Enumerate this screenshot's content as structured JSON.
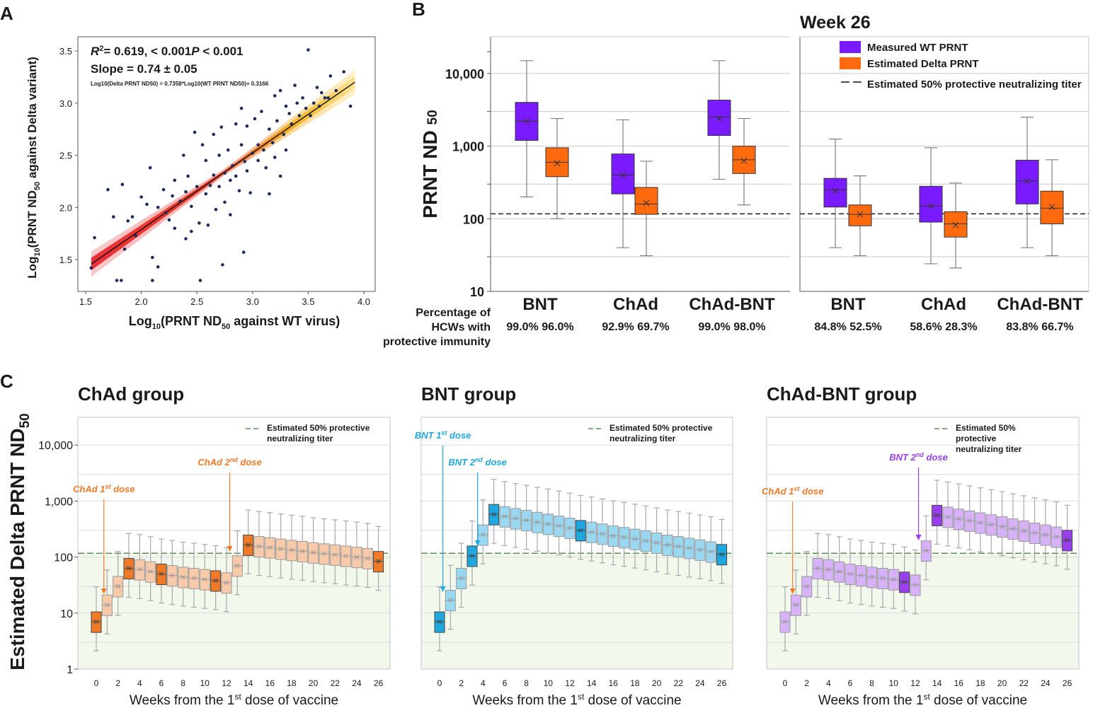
{
  "colors": {
    "wt": "#7a1bff",
    "delta": "#ff6a0e",
    "chad": "#f07a28",
    "bnt": "#1fa8e0",
    "chadbnt": "#9a3ff0",
    "dash_green": "#5a8f5a",
    "scatter": "#1c2a5c",
    "grid": "#c8c8c8"
  },
  "chart_data": [
    {
      "panel": "A",
      "type": "scatter",
      "xlabel": "Log10(PRNT ND50 against WT virus)",
      "ylabel": "Log10(PRNT ND50 against Delta variant)",
      "xlim": [
        1.5,
        4.0
      ],
      "ylim": [
        1.25,
        3.6
      ],
      "xticks": [
        "1.5",
        "2.0",
        "2.5",
        "3.0",
        "3.5",
        "4.0"
      ],
      "yticks": [
        "1.5",
        "2.0",
        "2.5",
        "3.0",
        "3.5"
      ],
      "annotation_r2": "R²= 0.619, P < 0.001",
      "annotation_slope": "Slope = 0.74 ± 0.05",
      "equation": "Log10(Delta PRNT ND50) = 0.7358*Log10(WT PRNT ND50)+ 0.3166",
      "fit": {
        "slope": 0.7358,
        "intercept": 0.3166
      },
      "points": [
        [
          1.55,
          1.42
        ],
        [
          1.58,
          1.71
        ],
        [
          1.7,
          2.17
        ],
        [
          1.75,
          1.91
        ],
        [
          1.78,
          1.3
        ],
        [
          1.82,
          1.3
        ],
        [
          1.83,
          2.22
        ],
        [
          1.85,
          1.6
        ],
        [
          1.88,
          1.87
        ],
        [
          1.92,
          1.91
        ],
        [
          1.95,
          1.73
        ],
        [
          2.0,
          2.1
        ],
        [
          2.05,
          2.03
        ],
        [
          2.08,
          2.38
        ],
        [
          2.1,
          1.52
        ],
        [
          2.1,
          1.3
        ],
        [
          2.15,
          1.43
        ],
        [
          2.15,
          2.0
        ],
        [
          2.2,
          2.17
        ],
        [
          2.22,
          1.95
        ],
        [
          2.25,
          1.88
        ],
        [
          2.28,
          2.11
        ],
        [
          2.3,
          1.8
        ],
        [
          2.3,
          2.26
        ],
        [
          2.35,
          2.06
        ],
        [
          2.38,
          2.5
        ],
        [
          2.4,
          2.15
        ],
        [
          2.4,
          1.7
        ],
        [
          2.42,
          2.3
        ],
        [
          2.45,
          2.01
        ],
        [
          2.45,
          1.77
        ],
        [
          2.48,
          2.72
        ],
        [
          2.5,
          2.2
        ],
        [
          2.52,
          1.85
        ],
        [
          2.53,
          1.3
        ],
        [
          2.55,
          2.6
        ],
        [
          2.58,
          2.45
        ],
        [
          2.58,
          2.13
        ],
        [
          2.6,
          1.83
        ],
        [
          2.62,
          2.21
        ],
        [
          2.65,
          2.7
        ],
        [
          2.65,
          2.31
        ],
        [
          2.67,
          1.98
        ],
        [
          2.7,
          2.5
        ],
        [
          2.7,
          2.2
        ],
        [
          2.72,
          2.77
        ],
        [
          2.73,
          1.45
        ],
        [
          2.75,
          2.33
        ],
        [
          2.75,
          2.05
        ],
        [
          2.78,
          2.55
        ],
        [
          2.8,
          2.26
        ],
        [
          2.8,
          1.93
        ],
        [
          2.82,
          2.4
        ],
        [
          2.85,
          2.8
        ],
        [
          2.85,
          2.3
        ],
        [
          2.88,
          2.16
        ],
        [
          2.9,
          2.6
        ],
        [
          2.9,
          2.95
        ],
        [
          2.92,
          1.57
        ],
        [
          2.93,
          2.44
        ],
        [
          2.95,
          2.35
        ],
        [
          2.95,
          2.78
        ],
        [
          2.98,
          2.14
        ],
        [
          3.0,
          2.52
        ],
        [
          3.02,
          2.85
        ],
        [
          3.05,
          2.45
        ],
        [
          3.05,
          2.6
        ],
        [
          3.08,
          2.92
        ],
        [
          3.1,
          2.55
        ],
        [
          3.12,
          2.38
        ],
        [
          3.15,
          2.75
        ],
        [
          3.15,
          2.13
        ],
        [
          3.18,
          2.62
        ],
        [
          3.2,
          3.07
        ],
        [
          3.2,
          2.48
        ],
        [
          3.22,
          2.83
        ],
        [
          3.25,
          2.3
        ],
        [
          3.25,
          3.12
        ],
        [
          3.28,
          2.7
        ],
        [
          3.3,
          2.97
        ],
        [
          3.3,
          2.55
        ],
        [
          3.33,
          2.9
        ],
        [
          3.35,
          2.8
        ],
        [
          3.38,
          3.17
        ],
        [
          3.4,
          3.0
        ],
        [
          3.42,
          2.88
        ],
        [
          3.45,
          3.05
        ],
        [
          3.48,
          2.95
        ],
        [
          3.5,
          3.51
        ],
        [
          3.52,
          2.88
        ],
        [
          3.55,
          3.0
        ],
        [
          3.58,
          3.15
        ],
        [
          3.6,
          2.97
        ],
        [
          3.62,
          3.1
        ],
        [
          3.65,
          3.05
        ],
        [
          3.68,
          3.05
        ],
        [
          3.7,
          3.26
        ],
        [
          3.75,
          3.12
        ],
        [
          3.82,
          3.3
        ],
        [
          3.88,
          2.97
        ]
      ]
    },
    {
      "panel": "B",
      "type": "box",
      "ylabel": "PRNT ND 50",
      "yscale": "log",
      "ylim": [
        10,
        30000
      ],
      "yticks": [
        "10",
        "100",
        "1,000",
        "10,000"
      ],
      "title_right": "Week 26",
      "legend": [
        "Measured WT PRNT",
        "Estimated Delta PRNT",
        "Estimated 50% protective neutralizing titer"
      ],
      "threshold": 117,
      "row_label": "Percentage of HCWs with protective immunity",
      "row_label_lines": [
        "Percentage of",
        "HCWs with",
        "protective immunity"
      ],
      "groups": [
        {
          "name": "BNT",
          "pct": "99.0% 96.0%",
          "wt": {
            "min": 200,
            "q1": 1200,
            "median": 2200,
            "mean": 2200,
            "q3": 4000,
            "max": 15000
          },
          "delta": {
            "min": 100,
            "q1": 380,
            "median": 600,
            "mean": 580,
            "q3": 950,
            "max": 2400
          }
        },
        {
          "name": "ChAd",
          "pct": "92.9% 69.7%",
          "wt": {
            "min": 40,
            "q1": 220,
            "median": 400,
            "mean": 400,
            "q3": 780,
            "max": 2300
          },
          "delta": {
            "min": 31,
            "q1": 115,
            "median": 160,
            "mean": 165,
            "q3": 270,
            "max": 620
          }
        },
        {
          "name": "ChAd-BNT",
          "pct": "99.0% 98.0%",
          "wt": {
            "min": 350,
            "q1": 1400,
            "median": 2500,
            "mean": 2400,
            "q3": 4300,
            "max": 15000
          },
          "delta": {
            "min": 155,
            "q1": 420,
            "median": 650,
            "mean": 630,
            "q3": 1000,
            "max": 2400
          }
        },
        {
          "name": "BNT",
          "pct": "84.8% 52.5%",
          "wt": {
            "min": 40,
            "q1": 145,
            "median": 250,
            "mean": 240,
            "q3": 360,
            "max": 1250
          },
          "delta": {
            "min": 31,
            "q1": 80,
            "median": 115,
            "mean": 115,
            "q3": 155,
            "max": 390
          }
        },
        {
          "name": "ChAd",
          "pct": "58.6% 28.3%",
          "wt": {
            "min": 24,
            "q1": 90,
            "median": 150,
            "mean": 150,
            "q3": 280,
            "max": 950
          },
          "delta": {
            "min": 21,
            "q1": 56,
            "median": 85,
            "mean": 82,
            "q3": 125,
            "max": 310
          }
        },
        {
          "name": "ChAd-BNT",
          "pct": "83.8% 66.7%",
          "wt": {
            "min": 40,
            "q1": 160,
            "median": 330,
            "mean": 330,
            "q3": 640,
            "max": 2500
          },
          "delta": {
            "min": 31,
            "q1": 85,
            "median": 140,
            "mean": 145,
            "q3": 240,
            "max": 650
          }
        }
      ]
    },
    {
      "panel": "C",
      "type": "box-timeseries",
      "ylabel": "Estimated Delta PRNT ND50",
      "yscale": "log",
      "ylim": [
        1,
        30000
      ],
      "yticks": [
        "1",
        "10",
        "100",
        "1,000",
        "10,000"
      ],
      "xlabel": "Weeks from the 1st dose of vaccine",
      "xticks": [
        "0",
        "2",
        "4",
        "6",
        "8",
        "10",
        "12",
        "14",
        "16",
        "18",
        "20",
        "22",
        "24",
        "26"
      ],
      "threshold": 117,
      "threshold_label": [
        "Estimated 50% protective",
        "neutralizing titer"
      ],
      "threshold_label_3": [
        "Estimated 50%",
        "protective",
        "neutralizing titer"
      ],
      "groups": [
        {
          "title": "ChAd group",
          "color_key": "chad",
          "annotations": [
            {
              "label": "ChAd 1st dose",
              "week": 0.7
            },
            {
              "label": "ChAd 2nd dose",
              "week": 12.3
            }
          ],
          "medians": [
            7,
            14,
            30,
            63,
            60,
            55,
            50,
            47,
            44,
            42,
            40,
            38,
            35,
            70,
            165,
            155,
            148,
            140,
            133,
            127,
            120,
            115,
            110,
            105,
            100,
            95,
            84
          ],
          "dark_weeks": [
            0,
            3,
            6,
            11,
            14,
            26
          ]
        },
        {
          "title": "BNT group",
          "color_key": "bnt",
          "annotations": [
            {
              "label": "BNT 1st dose",
              "week": 0.3
            },
            {
              "label": "BNT 2nd dose",
              "week": 3.5
            }
          ],
          "medians": [
            7,
            17,
            42,
            105,
            250,
            580,
            530,
            490,
            455,
            420,
            390,
            360,
            330,
            300,
            280,
            260,
            240,
            225,
            210,
            195,
            180,
            165,
            155,
            145,
            135,
            125,
            112
          ],
          "dark_weeks": [
            0,
            3,
            5,
            13,
            26
          ]
        },
        {
          "title": "ChAd-BNT group",
          "color_key": "chadbnt",
          "annotations": [
            {
              "label": "ChAd 1st dose",
              "week": 0.7
            },
            {
              "label": "BNT 2nd dose",
              "week": 12.3
            }
          ],
          "medians": [
            7,
            14,
            30,
            63,
            60,
            55,
            50,
            47,
            44,
            42,
            40,
            36,
            32,
            130,
            560,
            520,
            480,
            445,
            410,
            380,
            350,
            320,
            295,
            270,
            250,
            230,
            200
          ],
          "dark_weeks": [
            11,
            14,
            26
          ]
        }
      ]
    }
  ]
}
